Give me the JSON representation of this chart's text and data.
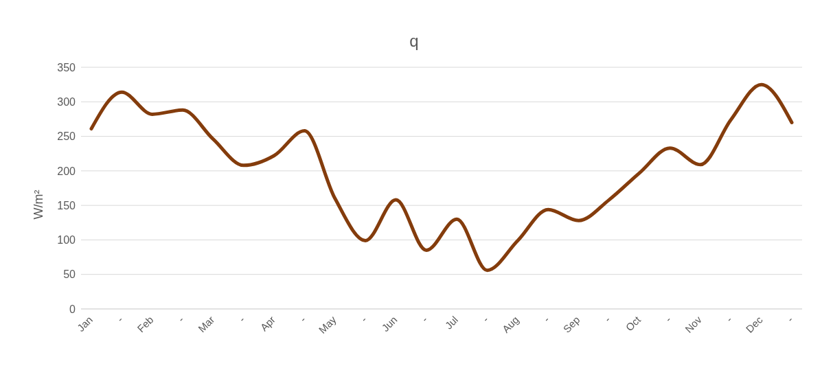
{
  "chart_data": {
    "type": "line",
    "title": "q",
    "ylabel": "W/m²",
    "categories": [
      "Jan",
      "-",
      "Feb",
      "-",
      "Mar",
      "-",
      "Apr",
      "-",
      "May",
      "-",
      "Jun",
      "-",
      "Jul",
      "-",
      "Aug",
      "-",
      "Sep",
      "-",
      "Oct",
      "-",
      "Nov",
      "-",
      "Dec",
      "-"
    ],
    "series": [
      {
        "color": "#843c0c",
        "values": [
          261,
          314,
          282,
          288,
          246,
          208,
          222,
          258,
          160,
          99,
          158,
          85,
          130,
          56,
          99,
          144,
          128,
          158,
          197,
          233,
          209,
          274,
          325,
          270
        ]
      }
    ],
    "ylim": [
      0,
      350
    ],
    "yticks": [
      0,
      50,
      100,
      150,
      200,
      250,
      300,
      350
    ],
    "grid": "y",
    "marker": "none",
    "line_style": "solid"
  }
}
